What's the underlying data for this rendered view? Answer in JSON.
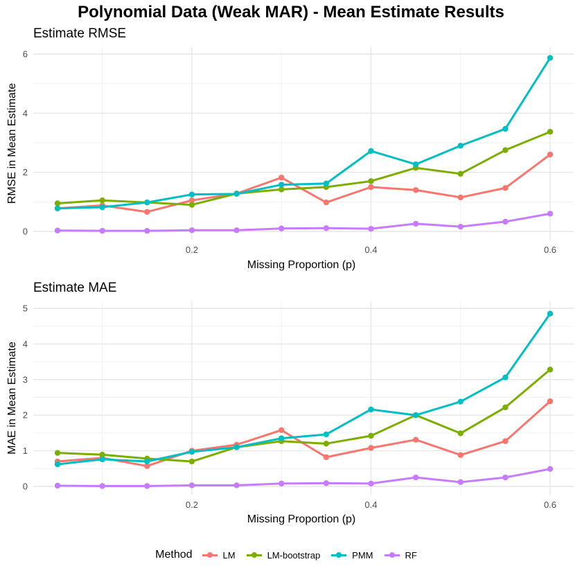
{
  "title": "Polynomial Data (Weak MAR) - Mean Estimate Results",
  "legend": {
    "title": "Method"
  },
  "colors": {
    "LM": "#F8766D",
    "LM-bootstrap": "#7CAE00",
    "PMM": "#00BFC4",
    "RF": "#C77CFF"
  },
  "chart_data": [
    {
      "type": "line",
      "title": "Estimate RMSE",
      "xlabel": "Missing Proportion (p)",
      "ylabel": "RMSE in Mean Estimate",
      "xlim": [
        0.05,
        0.6
      ],
      "ylim": [
        0,
        6
      ],
      "xticks": [
        "0.2",
        "0.4",
        "0.6"
      ],
      "yticks": [
        "0",
        "2",
        "4",
        "6"
      ],
      "grid": true,
      "x": [
        0.05,
        0.1,
        0.15,
        0.2,
        0.25,
        0.3,
        0.35,
        0.4,
        0.45,
        0.5,
        0.55,
        0.6
      ],
      "series": [
        {
          "name": "LM",
          "values": [
            0.78,
            0.88,
            0.66,
            1.05,
            1.28,
            1.82,
            0.98,
            1.5,
            1.4,
            1.15,
            1.47,
            2.6
          ]
        },
        {
          "name": "LM-bootstrap",
          "values": [
            0.95,
            1.05,
            0.98,
            0.9,
            1.28,
            1.42,
            1.5,
            1.7,
            2.15,
            1.95,
            2.75,
            3.37
          ]
        },
        {
          "name": "PMM",
          "values": [
            0.78,
            0.82,
            0.98,
            1.25,
            1.27,
            1.58,
            1.62,
            2.72,
            2.27,
            2.9,
            3.47,
            5.87
          ]
        },
        {
          "name": "RF",
          "values": [
            0.03,
            0.02,
            0.02,
            0.04,
            0.04,
            0.1,
            0.11,
            0.09,
            0.26,
            0.16,
            0.33,
            0.6
          ]
        }
      ]
    },
    {
      "type": "line",
      "title": "Estimate MAE",
      "xlabel": "Missing Proportion (p)",
      "ylabel": "MAE in Mean Estimate",
      "xlim": [
        0.05,
        0.6
      ],
      "ylim": [
        0,
        5
      ],
      "xticks": [
        "0.2",
        "0.4",
        "0.6"
      ],
      "yticks": [
        "0",
        "1",
        "2",
        "3",
        "4",
        "5"
      ],
      "grid": true,
      "x": [
        0.05,
        0.1,
        0.15,
        0.2,
        0.25,
        0.3,
        0.35,
        0.4,
        0.45,
        0.5,
        0.55,
        0.6
      ],
      "series": [
        {
          "name": "LM",
          "values": [
            0.7,
            0.8,
            0.57,
            1.0,
            1.17,
            1.58,
            0.82,
            1.08,
            1.31,
            0.88,
            1.27,
            2.39
          ]
        },
        {
          "name": "LM-bootstrap",
          "values": [
            0.94,
            0.89,
            0.78,
            0.7,
            1.1,
            1.27,
            1.2,
            1.42,
            2.0,
            1.49,
            2.22,
            3.28
          ]
        },
        {
          "name": "PMM",
          "values": [
            0.62,
            0.76,
            0.7,
            0.97,
            1.1,
            1.35,
            1.46,
            2.16,
            2.0,
            2.38,
            3.06,
            4.85
          ]
        },
        {
          "name": "RF",
          "values": [
            0.02,
            0.01,
            0.01,
            0.03,
            0.03,
            0.08,
            0.09,
            0.08,
            0.25,
            0.12,
            0.25,
            0.49
          ]
        }
      ]
    }
  ]
}
